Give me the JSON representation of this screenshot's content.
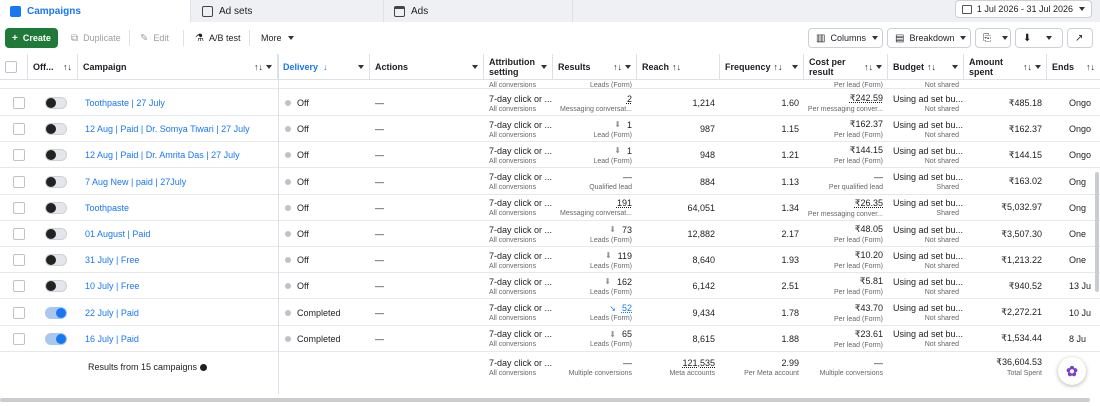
{
  "tabs": [
    {
      "label": "Campaigns",
      "icon": "campaigns-icon"
    },
    {
      "label": "Ad sets",
      "icon": "adsets-icon"
    },
    {
      "label": "Ads",
      "icon": "ads-icon"
    }
  ],
  "date_range": "1 Jul 2026 - 31 Jul 2026",
  "toolbar": {
    "create": "Create",
    "duplicate": "Duplicate",
    "edit": "Edit",
    "ab_test": "A/B test",
    "more": "More",
    "columns": "Columns",
    "breakdown": "Breakdown"
  },
  "headers": {
    "offon": "Off...",
    "campaign": "Campaign",
    "delivery": "Delivery",
    "actions": "Actions",
    "attribution": "Attribution setting",
    "results": "Results",
    "reach": "Reach",
    "frequency": "Frequency",
    "cost": "Cost per result",
    "budget": "Budget",
    "amount": "Amount spent",
    "ends": "Ends"
  },
  "top_partial": {
    "results_sub": "Leads (Form)",
    "attribution_sub": "All conversions",
    "cost_sub": "Per lead (Form)",
    "budget_sub": "Not shared"
  },
  "rows": [
    {
      "on": false,
      "campaign": "Toothpaste | 27 July",
      "delivery": "Off",
      "actions": "—",
      "attr": "7-day click or ...",
      "attr_sub": "All conversions",
      "results": "2",
      "results_sub": "Messaging conversat...",
      "res_icon": "",
      "res_ul": true,
      "reach": "1,214",
      "freq": "1.60",
      "cost": "₹242.59",
      "cost_ul": true,
      "cost_sub": "Per messaging conver...",
      "budget": "Using ad set bu...",
      "budget_sub": "Not shared",
      "amount": "₹485.18",
      "ends": "Ongo"
    },
    {
      "on": false,
      "campaign": "12 Aug | Paid | Dr. Somya Tiwari | 27 July",
      "delivery": "Off",
      "actions": "—",
      "attr": "7-day click or ...",
      "attr_sub": "All conversions",
      "results": "1",
      "results_sub": "Lead (Form)",
      "res_icon": "dl",
      "res_ul": false,
      "reach": "987",
      "freq": "1.15",
      "cost": "₹162.37",
      "cost_ul": false,
      "cost_sub": "Per lead (Form)",
      "budget": "Using ad set bu...",
      "budget_sub": "Not shared",
      "amount": "₹162.37",
      "ends": "Ongo"
    },
    {
      "on": false,
      "campaign": "12 Aug | Paid | Dr. Amrita Das | 27 July",
      "delivery": "Off",
      "actions": "—",
      "attr": "7-day click or ...",
      "attr_sub": "All conversions",
      "results": "1",
      "results_sub": "Lead (Form)",
      "res_icon": "dl",
      "res_ul": false,
      "reach": "948",
      "freq": "1.21",
      "cost": "₹144.15",
      "cost_ul": false,
      "cost_sub": "Per lead (Form)",
      "budget": "Using ad set bu...",
      "budget_sub": "Not shared",
      "amount": "₹144.15",
      "ends": "Ongo"
    },
    {
      "on": false,
      "campaign": "7 Aug New | paid | 27July",
      "delivery": "Off",
      "actions": "—",
      "attr": "7-day click or ...",
      "attr_sub": "All conversions",
      "results": "—",
      "results_sub": "Qualified lead",
      "res_icon": "",
      "res_ul": false,
      "reach": "884",
      "freq": "1.13",
      "cost": "—",
      "cost_ul": false,
      "cost_sub": "Per qualified lead",
      "budget": "Using ad set bu...",
      "budget_sub": "Shared",
      "amount": "₹163.02",
      "ends": "Ong"
    },
    {
      "on": false,
      "campaign": "Toothpaste",
      "delivery": "Off",
      "actions": "—",
      "attr": "7-day click or ...",
      "attr_sub": "All conversions",
      "results": "191",
      "results_sub": "Messaging conversat...",
      "res_icon": "",
      "res_ul": true,
      "reach": "64,051",
      "freq": "1.34",
      "cost": "₹26.35",
      "cost_ul": true,
      "cost_sub": "Per messaging conver...",
      "budget": "Using ad set bu...",
      "budget_sub": "Shared",
      "amount": "₹5,032.97",
      "ends": "Ong"
    },
    {
      "on": false,
      "campaign": "01 August | Paid",
      "delivery": "Off",
      "actions": "—",
      "attr": "7-day click or ...",
      "attr_sub": "All conversions",
      "results": "73",
      "results_sub": "Leads (Form)",
      "res_icon": "dl",
      "res_ul": false,
      "reach": "12,882",
      "freq": "2.17",
      "cost": "₹48.05",
      "cost_ul": false,
      "cost_sub": "Per lead (Form)",
      "budget": "Using ad set bu...",
      "budget_sub": "Not shared",
      "amount": "₹3,507.30",
      "ends": "One"
    },
    {
      "on": false,
      "campaign": "31 July | Free",
      "delivery": "Off",
      "actions": "—",
      "attr": "7-day click or ...",
      "attr_sub": "All conversions",
      "results": "119",
      "results_sub": "Leads (Form)",
      "res_icon": "dl",
      "res_ul": false,
      "reach": "8,640",
      "freq": "1.93",
      "cost": "₹10.20",
      "cost_ul": false,
      "cost_sub": "Per lead (Form)",
      "budget": "Using ad set bu...",
      "budget_sub": "Not shared",
      "amount": "₹1,213.22",
      "ends": "One"
    },
    {
      "on": false,
      "campaign": "10 July | Free",
      "delivery": "Off",
      "actions": "—",
      "attr": "7-day click or ...",
      "attr_sub": "All conversions",
      "results": "162",
      "results_sub": "Leads (Form)",
      "res_icon": "dl",
      "res_ul": false,
      "reach": "6,142",
      "freq": "2.51",
      "cost": "₹5.81",
      "cost_ul": false,
      "cost_sub": "Per lead (Form)",
      "budget": "Using ad set bu...",
      "budget_sub": "Not shared",
      "amount": "₹940.52",
      "ends": "13 Ju"
    },
    {
      "on": true,
      "campaign": "22 July | Paid",
      "delivery": "Completed",
      "actions": "—",
      "attr": "7-day click or ...",
      "attr_sub": "All conversions",
      "results": "52",
      "results_sub": "Leads (Form)",
      "res_icon": "trend",
      "res_ul": true,
      "reach": "9,434",
      "freq": "1.78",
      "cost": "₹43.70",
      "cost_ul": false,
      "cost_sub": "Per lead (Form)",
      "budget": "Using ad set bu...",
      "budget_sub": "Not shared",
      "amount": "₹2,272.21",
      "ends": "10 Ju"
    },
    {
      "on": true,
      "campaign": "16 July | Paid",
      "delivery": "Completed",
      "actions": "—",
      "attr": "7-day click or ...",
      "attr_sub": "All conversions",
      "results": "65",
      "results_sub": "Leads (Form)",
      "res_icon": "dl",
      "res_ul": false,
      "reach": "8,615",
      "freq": "1.88",
      "cost": "₹23.61",
      "cost_ul": false,
      "cost_sub": "Per lead (Form)",
      "budget": "Using ad set bu...",
      "budget_sub": "Not shared",
      "amount": "₹1,534.44",
      "ends": "8 Ju"
    }
  ],
  "summary": {
    "label": "Results from 15 campaigns",
    "attr": "7-day click or ...",
    "attr_sub": "All conversions",
    "results": "—",
    "results_sub": "Multiple conversions",
    "reach": "121,535",
    "reach_sub": "Meta accounts",
    "freq": "2.99",
    "freq_sub": "Per Meta account",
    "cost": "—",
    "cost_sub": "Multiple conversions",
    "amount": "₹36,604.53",
    "amount_sub": "Total Spent"
  }
}
